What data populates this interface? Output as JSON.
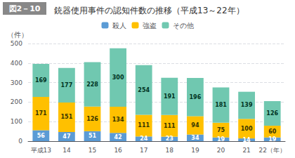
{
  "chart_data": {
    "type": "bar",
    "title": "銃器使用事件の認知件数の推移（平成13～22年）",
    "annotations": [
      "図2－10"
    ],
    "ylabel": "（件）",
    "categories": [
      "平成13",
      "14",
      "15",
      "16",
      "17",
      "18",
      "19",
      "20",
      "21",
      "22（年）"
    ],
    "series": [
      {
        "name": "殺人",
        "color": "#5b9bd5",
        "values": [
          56,
          47,
          51,
          42,
          24,
          23,
          34,
          19,
          14,
          19
        ]
      },
      {
        "name": "強盗",
        "color": "#ffc000",
        "values": [
          171,
          151,
          126,
          134,
          111,
          111,
          94,
          75,
          100,
          60
        ]
      },
      {
        "name": "その他",
        "color": "#70c8b0",
        "values": [
          169,
          177,
          228,
          300,
          254,
          191,
          196,
          181,
          139,
          126
        ]
      }
    ],
    "stacked": true,
    "data_labels": true,
    "ylim": [
      0,
      500
    ],
    "yticks": [
      0,
      100,
      200,
      300,
      400,
      500
    ],
    "grid": true,
    "legend": "top"
  }
}
